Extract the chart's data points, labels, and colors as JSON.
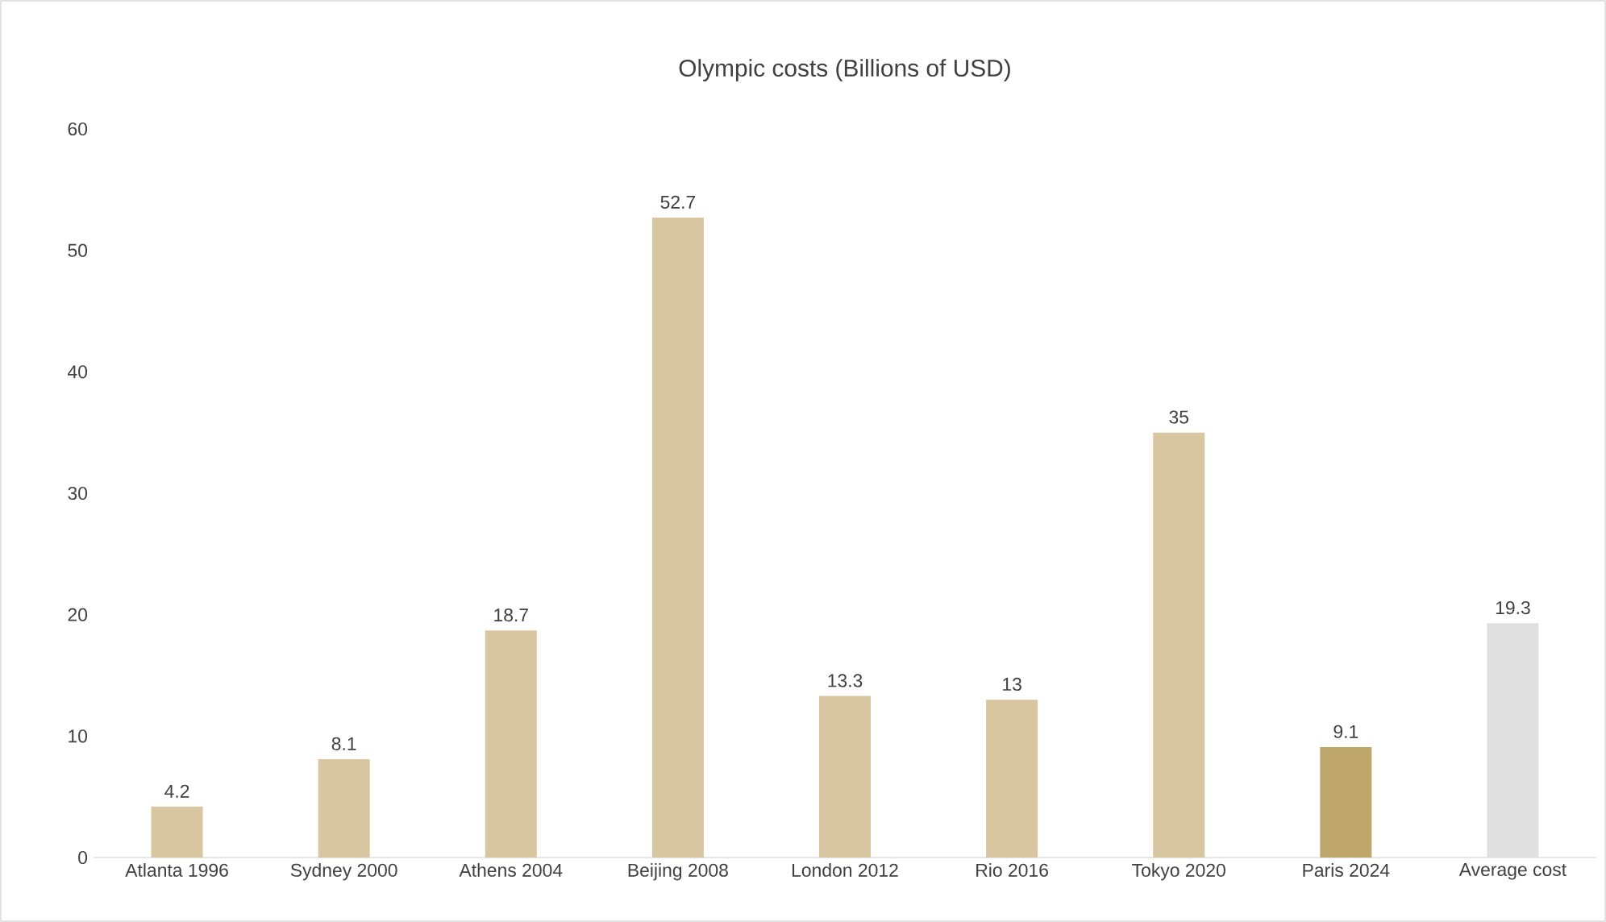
{
  "chart_data": {
    "type": "bar",
    "title": "Olympic costs (Billions of USD)",
    "categories": [
      "Atlanta 1996",
      "Sydney 2000",
      "Athens 2004",
      "Beijing 2008",
      "London 2012",
      "Rio 2016",
      "Tokyo 2020",
      "Paris 2024",
      "Average cost"
    ],
    "values": [
      4.2,
      8.1,
      18.7,
      52.7,
      13.3,
      13,
      35,
      9.1,
      19.3
    ],
    "colors": [
      "#d7c6a0",
      "#d7c6a0",
      "#d7c6a0",
      "#d7c6a0",
      "#d7c6a0",
      "#d7c6a0",
      "#d7c6a0",
      "#bfa76c",
      "#e0e0e0"
    ],
    "ylim": [
      0,
      60
    ],
    "yticks": [
      0,
      10,
      20,
      30,
      40,
      50,
      60
    ],
    "data_labels": true,
    "grid": false
  }
}
